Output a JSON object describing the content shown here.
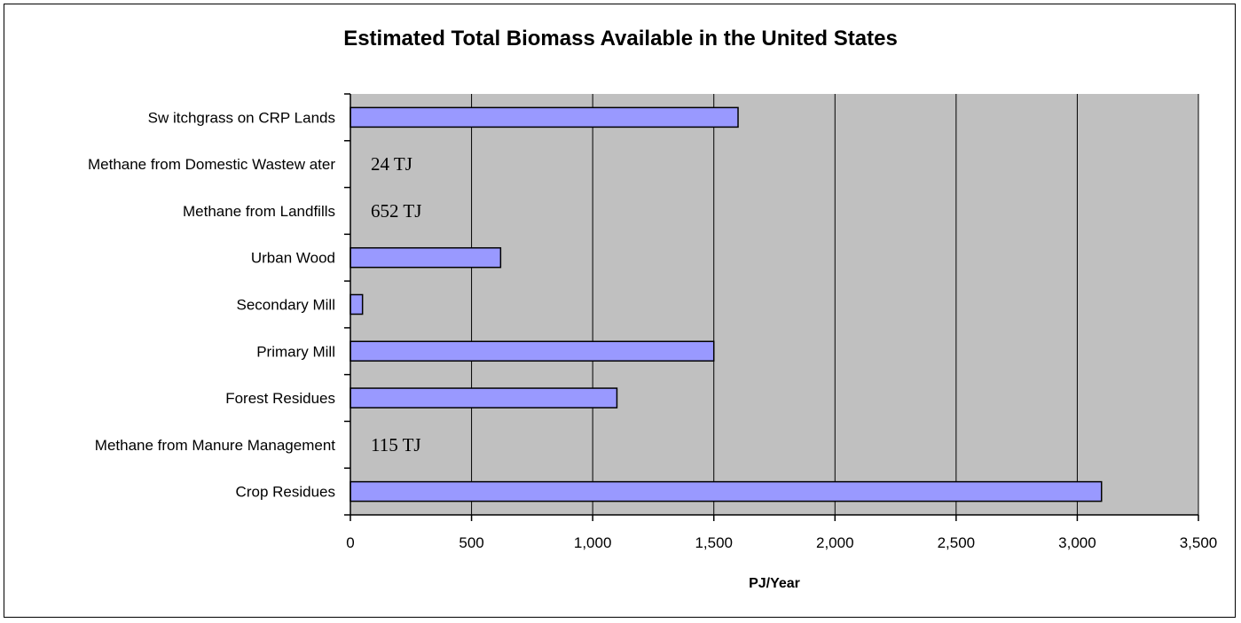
{
  "chart_data": {
    "type": "bar",
    "orientation": "horizontal",
    "title": "Estimated Total Biomass Available in the United States",
    "xlabel": "PJ/Year",
    "ylabel": "",
    "xlim": [
      0,
      3500
    ],
    "xticks": [
      0,
      500,
      1000,
      1500,
      2000,
      2500,
      3000,
      3500
    ],
    "xtick_labels": [
      "0",
      "500",
      "1,000",
      "1,500",
      "2,000",
      "2,500",
      "3,000",
      "3,500"
    ],
    "grid": "vertical",
    "categories": [
      "Sw itchgrass on CRP Lands",
      "Methane from Domestic Wastew ater",
      "Methane from Landfills",
      "Urban Wood",
      "Secondary Mill",
      "Primary Mill",
      "Forest Residues",
      "Methane from Manure Management",
      "Crop Residues"
    ],
    "values": [
      1600,
      0.024,
      0.652,
      620,
      50,
      1500,
      1100,
      0.115,
      3100
    ],
    "annotations": [
      "",
      "24 TJ",
      "652 TJ",
      "",
      "",
      "",
      "",
      "115 TJ",
      ""
    ],
    "colors": {
      "bar_fill": "#9999ff",
      "bar_stroke": "#000000",
      "plot_background": "#c0c0c0",
      "gridline": "#000000"
    }
  }
}
